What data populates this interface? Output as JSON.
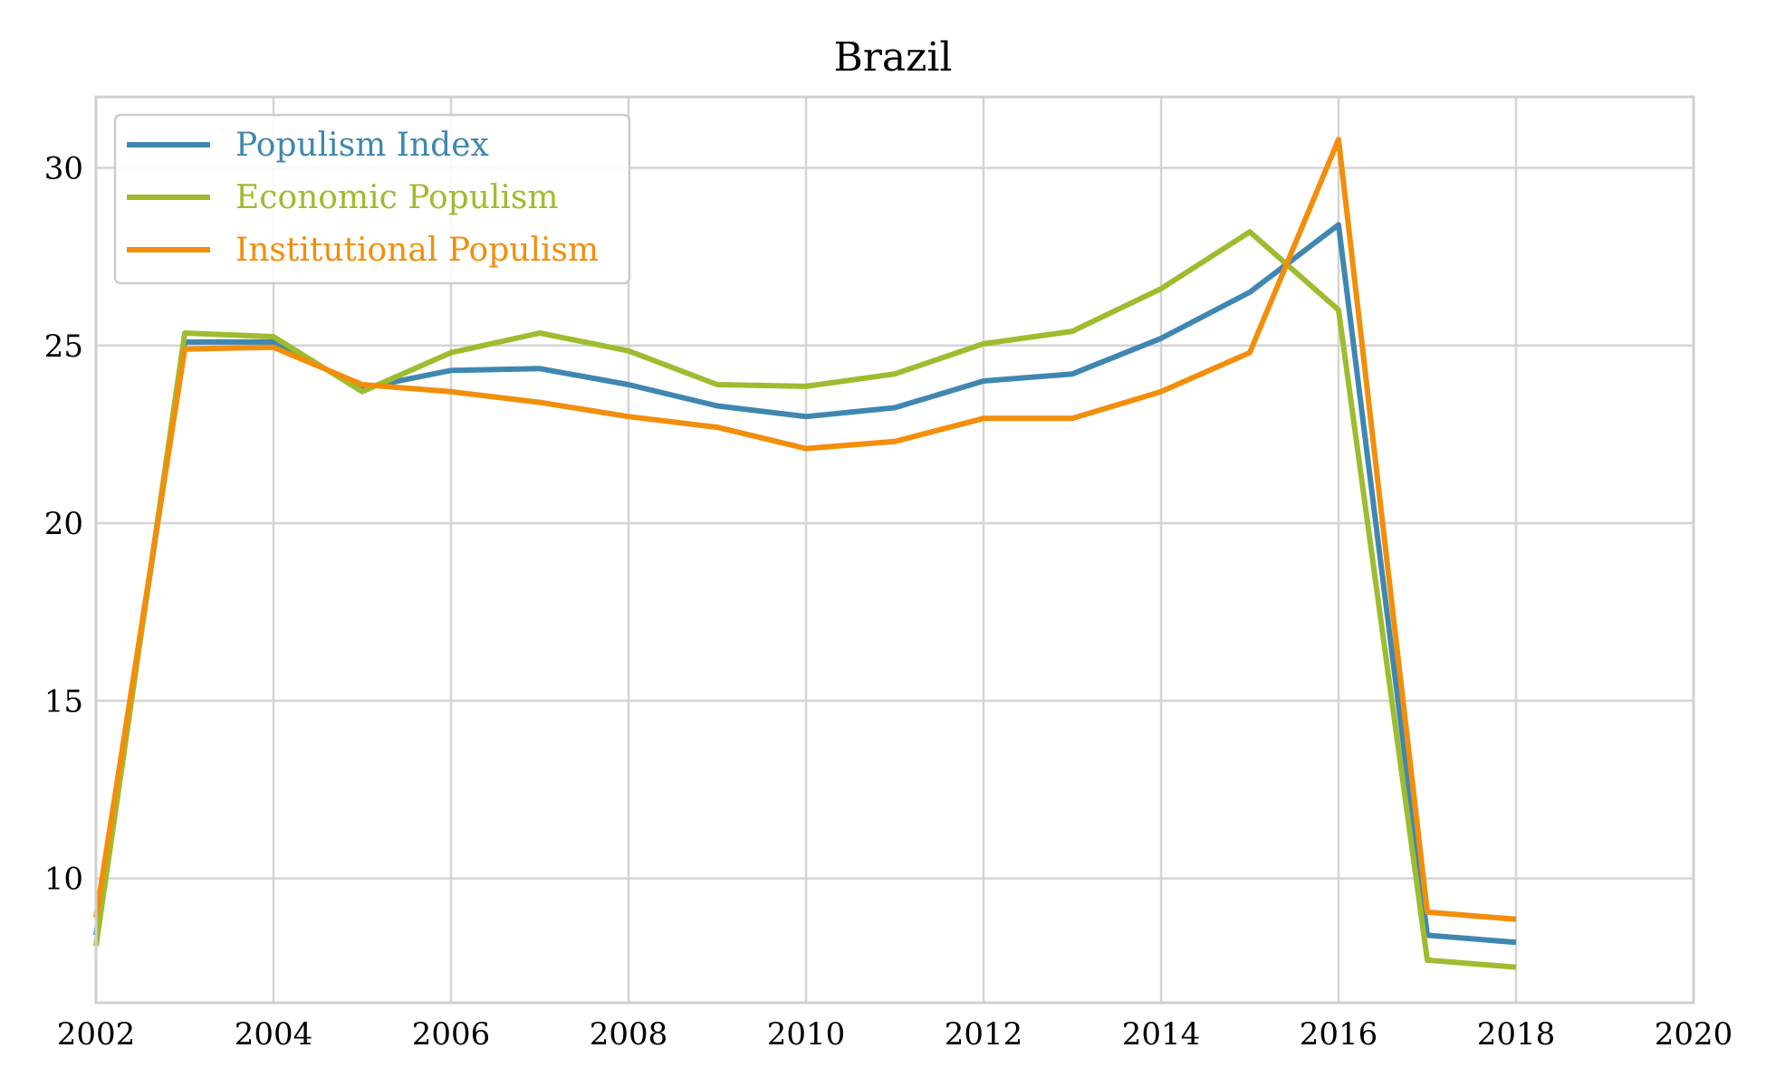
{
  "chart_data": {
    "type": "line",
    "title": "Brazil",
    "xlabel": "",
    "ylabel": "",
    "xlim": [
      2002,
      2020
    ],
    "ylim": [
      6.5,
      32
    ],
    "x_ticks": [
      2002,
      2004,
      2006,
      2008,
      2010,
      2012,
      2014,
      2016,
      2018,
      2020
    ],
    "y_ticks": [
      10,
      15,
      20,
      25,
      30
    ],
    "grid": true,
    "legend_position": "top-left",
    "x": [
      2002,
      2003,
      2004,
      2005,
      2006,
      2007,
      2008,
      2009,
      2010,
      2011,
      2012,
      2013,
      2014,
      2015,
      2016,
      2017,
      2018
    ],
    "series": [
      {
        "name": "Populism Index",
        "color": "#3f87b1",
        "values": [
          8.4,
          25.1,
          25.1,
          23.8,
          24.3,
          24.35,
          23.9,
          23.3,
          23.0,
          23.25,
          24.0,
          24.2,
          25.2,
          26.5,
          28.4,
          8.4,
          8.2
        ]
      },
      {
        "name": "Economic Populism",
        "color": "#9ebc2e",
        "values": [
          8.1,
          25.35,
          25.25,
          23.7,
          24.8,
          25.35,
          24.85,
          23.9,
          23.85,
          24.2,
          25.05,
          25.4,
          26.6,
          28.2,
          26.0,
          7.7,
          7.5
        ]
      },
      {
        "name": "Institutional Populism",
        "color": "#f28e0a",
        "values": [
          8.9,
          24.9,
          24.95,
          23.9,
          23.7,
          23.4,
          23.0,
          22.7,
          22.1,
          22.3,
          22.95,
          22.95,
          23.7,
          24.8,
          30.8,
          9.05,
          8.85
        ]
      }
    ]
  }
}
